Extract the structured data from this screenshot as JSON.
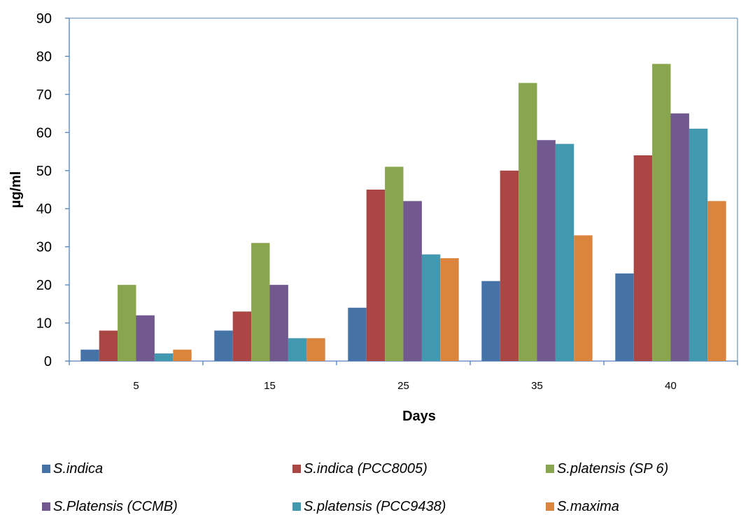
{
  "chart_data": {
    "type": "bar",
    "title": "",
    "xlabel": "Days",
    "ylabel": "µg/ml",
    "ylim": [
      0,
      90
    ],
    "ytick_step": 10,
    "yticks": [
      "0",
      "10",
      "20",
      "30",
      "40",
      "50",
      "60",
      "70",
      "80",
      "90"
    ],
    "categories": [
      "5",
      "15",
      "25",
      "35",
      "40"
    ],
    "grid": false,
    "legend_position": "bottom",
    "series": [
      {
        "name": "S.indica",
        "color": "#4572a7",
        "values": [
          3,
          8,
          14,
          21,
          23
        ]
      },
      {
        "name": "S.indica (PCC8005)",
        "color": "#aa4643",
        "values": [
          8,
          13,
          45,
          50,
          54
        ]
      },
      {
        "name": "S.platensis (SP 6)",
        "color": "#89a54e",
        "values": [
          20,
          31,
          51,
          73,
          78
        ]
      },
      {
        "name": "S.Platensis (CCMB)",
        "color": "#71588f",
        "values": [
          12,
          20,
          42,
          58,
          65
        ]
      },
      {
        "name": "S.platensis (PCC9438)",
        "color": "#4198af",
        "values": [
          2,
          6,
          28,
          57,
          61
        ]
      },
      {
        "name": "S.maxima",
        "color": "#db843d",
        "values": [
          3,
          6,
          27,
          33,
          42
        ]
      }
    ]
  }
}
